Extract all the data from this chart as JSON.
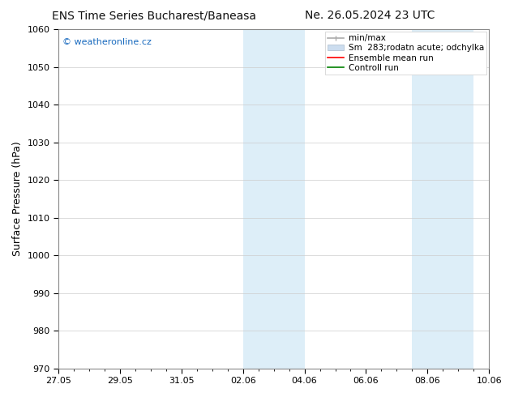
{
  "title_left": "ENS Time Series Bucharest/Baneasa",
  "title_right": "Ne. 26.05.2024 23 UTC",
  "ylabel": "Surface Pressure (hPa)",
  "ylim": [
    970,
    1060
  ],
  "yticks": [
    970,
    980,
    990,
    1000,
    1010,
    1020,
    1030,
    1040,
    1050,
    1060
  ],
  "xlabel_ticks": [
    "27.05",
    "29.05",
    "31.05",
    "02.06",
    "04.06",
    "06.06",
    "08.06",
    "10.06"
  ],
  "x_tick_positions": [
    0,
    2,
    4,
    6,
    8,
    10,
    12,
    14
  ],
  "x_minor_positions": [
    0.5,
    1.0,
    1.5,
    2.5,
    3.0,
    3.5,
    4.5,
    5.0,
    5.5,
    6.5,
    7.0,
    7.5,
    8.5,
    9.0,
    9.5,
    10.5,
    11.0,
    11.5,
    12.5,
    13.0,
    13.5
  ],
  "xlim": [
    0,
    14
  ],
  "shaded_bands": [
    {
      "xmin": 6.0,
      "xmax": 8.0,
      "color": "#ddeef8"
    },
    {
      "xmin": 11.5,
      "xmax": 13.5,
      "color": "#ddeef8"
    }
  ],
  "watermark_text": "© weatheronline.cz",
  "watermark_color": "#1a6bbf",
  "legend_entries": [
    {
      "label": "min/max",
      "color": "#aaaaaa",
      "lw": 1.2
    },
    {
      "label": "Sm  283;rodatn acute; odchylka",
      "facecolor": "#ccddef",
      "edgecolor": "#aabbcc"
    },
    {
      "label": "Ensemble mean run",
      "color": "red",
      "lw": 1.2
    },
    {
      "label": "Controll run",
      "color": "green",
      "lw": 1.2
    }
  ],
  "bg_color": "#ffffff",
  "plot_bg_color": "#ffffff",
  "border_color": "#888888",
  "title_fontsize": 10,
  "tick_fontsize": 8,
  "ylabel_fontsize": 9,
  "legend_fontsize": 7.5
}
